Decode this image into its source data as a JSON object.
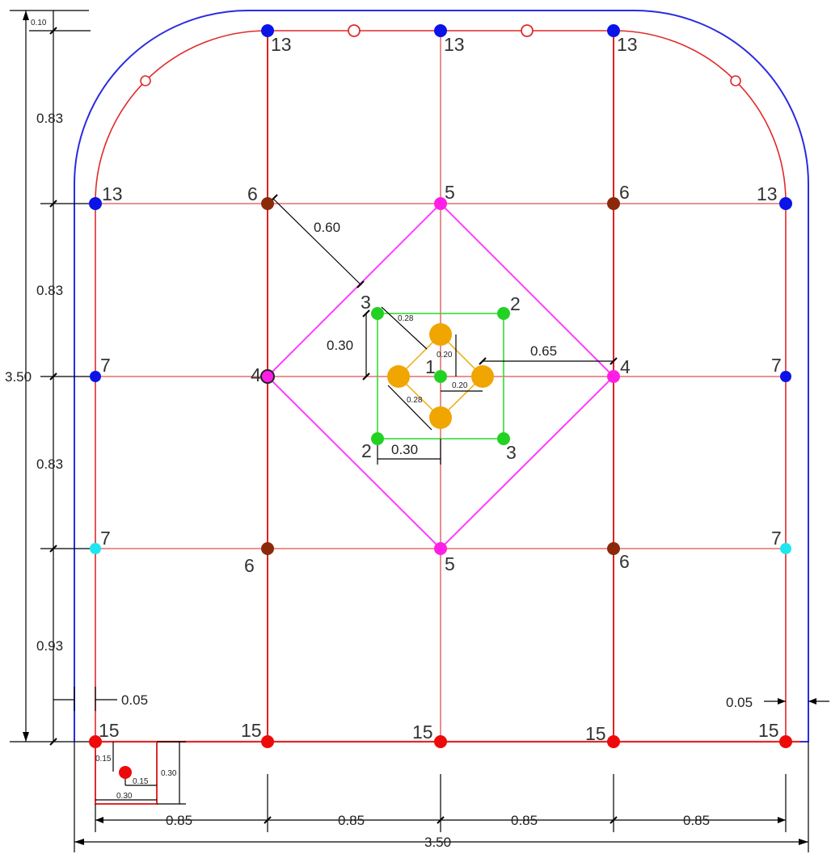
{
  "colors": {
    "outline": "#2a2ae0",
    "excavation": "#e02a2a",
    "grid": "#e06060",
    "diamond": "#ff3cff",
    "square": "#33dd33",
    "cut_small": "#f0a500",
    "cut_link": "#f0b020",
    "hole_blue": "#0a14e6",
    "hole_brown": "#8b2a0a",
    "hole_magenta": "#ff1ee6",
    "hole_green": "#22d222",
    "hole_red": "#ee0a0a",
    "hole_cyan": "#1ee6f0",
    "dim": "#000000"
  },
  "hole_labels": {
    "top_left": "13",
    "top_center": "13",
    "top_right": "13",
    "springline_left": "13",
    "springline_right": "13",
    "grid_tl": "6",
    "grid_tr": "6",
    "grid_bl": "6",
    "grid_br": "6",
    "diamond_top": "5",
    "diamond_bottom": "5",
    "diamond_left": "4",
    "diamond_right": "4",
    "wall_left_upper": "7",
    "wall_right_upper": "7",
    "wall_left_lower": "7",
    "wall_right_lower": "7",
    "square_tl": "3",
    "square_tr": "2",
    "square_bl": "2",
    "square_br": "3",
    "center": "1",
    "floor_1": "15",
    "floor_2": "15",
    "floor_3": "15",
    "floor_4": "15",
    "floor_5": "15"
  },
  "dimensions": {
    "crown_offset": "0.10",
    "arch_rise": "0.83",
    "upper_spacing": "0.83",
    "mid_spacing": "0.83",
    "lower_spacing": "0.93",
    "total_height": "3.50",
    "wall_gap_left": "0.05",
    "wall_gap_right": "0.05",
    "col_1": "0.85",
    "col_2": "0.85",
    "col_3": "0.85",
    "col_4": "0.85",
    "total_width": "3.50",
    "diamond_offset": "0.60",
    "square_height": "0.30",
    "square_width": "0.30",
    "center_to_edge": "0.65",
    "cut_diag_top": "0.28",
    "cut_diag_bottom": "0.28",
    "cut_vertical": "0.20",
    "cut_horizontal": "0.20",
    "ditch_depth_left": "0.15",
    "ditch_inner": "0.15",
    "ditch_depth": "0.30",
    "ditch_width": "0.30"
  }
}
